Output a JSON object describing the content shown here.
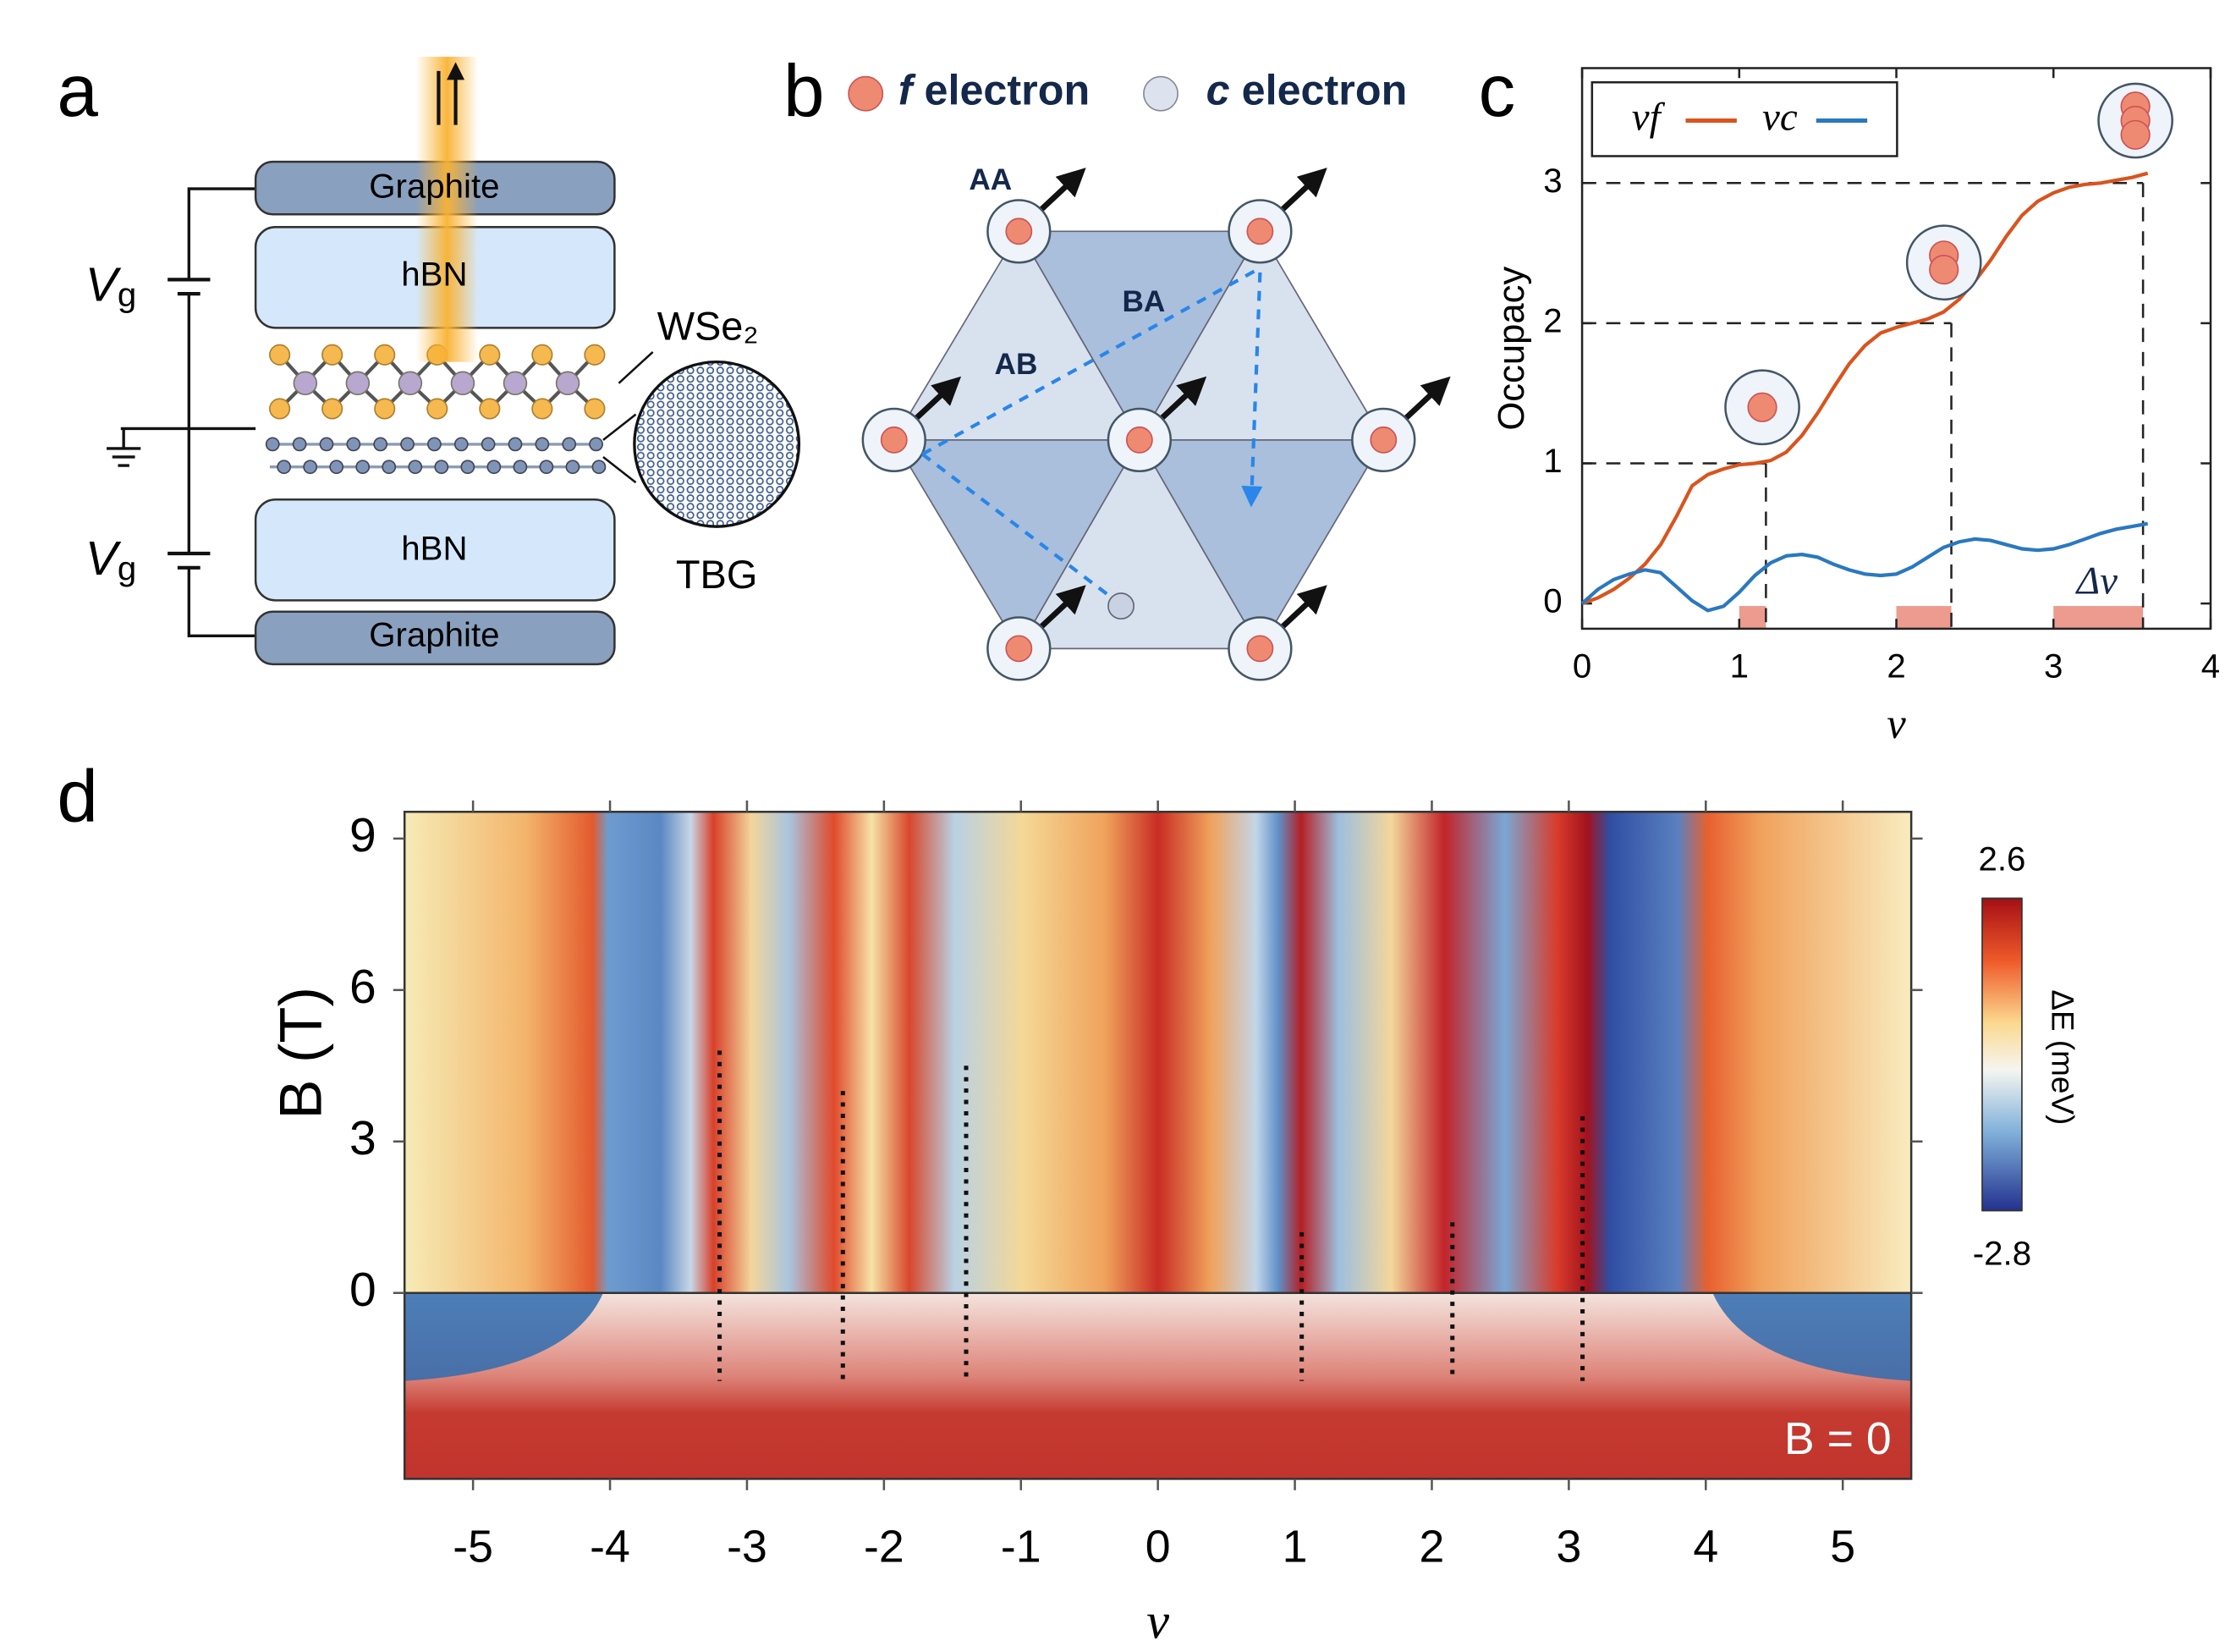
{
  "panel_labels": [
    "a",
    "b",
    "c",
    "d"
  ],
  "diagram_a": {
    "layers": [
      "Graphite",
      "hBN",
      "hBN",
      "Graphite"
    ],
    "voltage": {
      "symbol": "V",
      "subscript": "g"
    },
    "materials": [
      "WSe₂",
      "TBG"
    ]
  },
  "diagram_b": {
    "legend": [
      {
        "symbol": "f",
        "label": "electron"
      },
      {
        "symbol": "c",
        "label": "electron"
      }
    ],
    "sites": [
      "AA",
      "AB",
      "BA"
    ]
  },
  "chart_data": [
    {
      "type": "line",
      "xlabel": "ν",
      "ylabel": "Occupacy",
      "xlim": [
        0,
        4
      ],
      "ylim": [
        -0.18,
        3.82
      ],
      "xticks": [
        0,
        1,
        2,
        3,
        4
      ],
      "yticks": [
        0,
        1,
        2,
        3
      ],
      "legend": "top-left",
      "x": [
        0,
        0.1,
        0.2,
        0.3,
        0.4,
        0.5,
        0.6,
        0.7,
        0.8,
        0.9,
        1.0,
        1.1,
        1.2,
        1.3,
        1.4,
        1.5,
        1.6,
        1.7,
        1.8,
        1.9,
        2.0,
        2.1,
        2.2,
        2.3,
        2.4,
        2.5,
        2.6,
        2.7,
        2.8,
        2.9,
        3.0,
        3.1,
        3.2,
        3.3,
        3.4,
        3.5,
        3.6
      ],
      "series": [
        {
          "name": "νf",
          "color": "#d9541e",
          "values": [
            0,
            0.04,
            0.1,
            0.18,
            0.28,
            0.42,
            0.62,
            0.84,
            0.92,
            0.96,
            0.99,
            1.0,
            1.02,
            1.08,
            1.2,
            1.36,
            1.54,
            1.71,
            1.84,
            1.93,
            1.97,
            2.0,
            2.03,
            2.08,
            2.17,
            2.3,
            2.45,
            2.62,
            2.77,
            2.87,
            2.93,
            2.97,
            2.99,
            3.0,
            3.02,
            3.04,
            3.07
          ]
        },
        {
          "name": "νc",
          "color": "#2a78c0",
          "values": [
            0,
            0.1,
            0.17,
            0.21,
            0.24,
            0.22,
            0.12,
            0.02,
            -0.05,
            -0.02,
            0.08,
            0.2,
            0.29,
            0.34,
            0.35,
            0.33,
            0.28,
            0.24,
            0.21,
            0.2,
            0.21,
            0.26,
            0.33,
            0.4,
            0.44,
            0.46,
            0.45,
            0.42,
            0.39,
            0.38,
            0.39,
            0.42,
            0.46,
            0.5,
            0.53,
            0.55,
            0.57
          ]
        }
      ],
      "guides": [
        {
          "x": 1.17,
          "y": 1
        },
        {
          "x": 2.35,
          "y": 2
        },
        {
          "x": 3.57,
          "y": 3
        }
      ],
      "shaded_ranges": [
        [
          1.0,
          1.17
        ],
        [
          2.0,
          2.35
        ],
        [
          3.0,
          3.57
        ]
      ],
      "annotation": "Δν"
    },
    {
      "type": "heatmap",
      "xlabel": "ν",
      "ylabel": "B (T)",
      "xlim": [
        -5.5,
        5.5
      ],
      "ylim": [
        0,
        9.53
      ],
      "xticks": [
        -5,
        -4,
        -3,
        -2,
        -1,
        0,
        1,
        2,
        3,
        4,
        5
      ],
      "yticks": [
        0,
        3,
        6,
        9
      ],
      "colorbar": {
        "label": "ΔE (meV)",
        "lim": [
          -2.8,
          2.6
        ],
        "ticks": [
          2.6,
          -2.8
        ]
      },
      "dotted_lines": [
        {
          "x": -3.2,
          "top": 4.8
        },
        {
          "x": -2.3,
          "top": 4.0
        },
        {
          "x": -1.4,
          "top": 4.5
        },
        {
          "x": 1.05,
          "top": 1.2
        },
        {
          "x": 2.15,
          "top": 1.4
        },
        {
          "x": 3.1,
          "top": 3.5
        }
      ],
      "inset_label": "B = 0"
    }
  ]
}
